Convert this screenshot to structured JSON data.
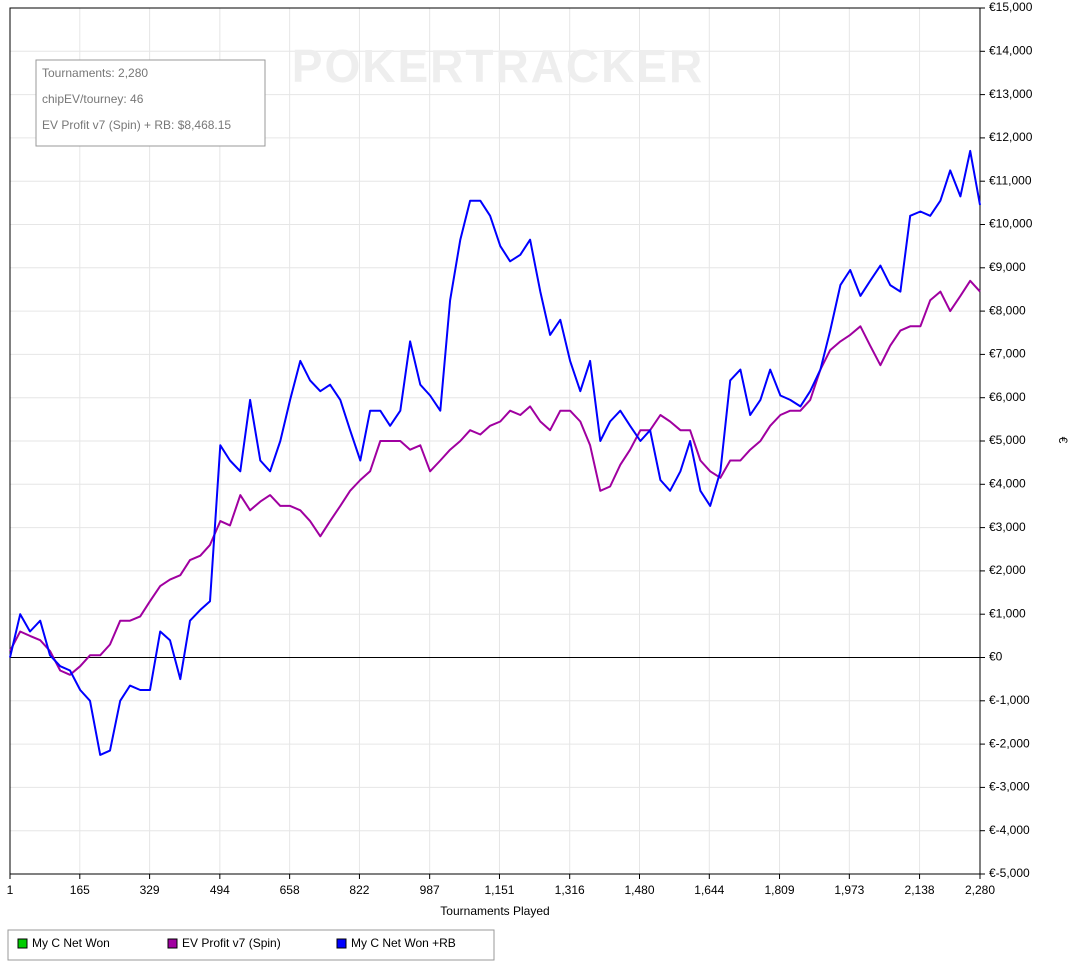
{
  "chart_data": {
    "type": "line",
    "watermark": "POKERTRACKER",
    "xlabel": "Tournaments Played",
    "ylabel": "€",
    "annotations": [
      "Tournaments: 2,280",
      "chipEV/tourney: 46",
      "EV Profit v7 (Spin) + RB: $8,468.15"
    ],
    "grid": true,
    "legend": "bottom-left",
    "xlim": [
      1,
      2280
    ],
    "ylim": [
      -5000,
      15000
    ],
    "xticks": [
      1,
      165,
      329,
      494,
      658,
      822,
      987,
      {
        "value": 1151,
        "label": "1,151"
      },
      {
        "value": 1316,
        "label": "1,316"
      },
      {
        "value": 1480,
        "label": "1,480"
      },
      {
        "value": 1644,
        "label": "1,644"
      },
      {
        "value": 1809,
        "label": "1,809"
      },
      {
        "value": 1973,
        "label": "1,973"
      },
      {
        "value": 2138,
        "label": "2,138"
      },
      {
        "value": 2280,
        "label": "2,280"
      }
    ],
    "yticks": [
      {
        "value": -5000,
        "label": "€-5,000"
      },
      {
        "value": -4000,
        "label": "€-4,000"
      },
      {
        "value": -3000,
        "label": "€-3,000"
      },
      {
        "value": -2000,
        "label": "€-2,000"
      },
      {
        "value": -1000,
        "label": "€-1,000"
      },
      {
        "value": 0,
        "label": "€0"
      },
      {
        "value": 1000,
        "label": "€1,000"
      },
      {
        "value": 2000,
        "label": "€2,000"
      },
      {
        "value": 3000,
        "label": "€3,000"
      },
      {
        "value": 4000,
        "label": "€4,000"
      },
      {
        "value": 5000,
        "label": "€5,000"
      },
      {
        "value": 6000,
        "label": "€6,000"
      },
      {
        "value": 7000,
        "label": "€7,000"
      },
      {
        "value": 8000,
        "label": "€8,000"
      },
      {
        "value": 9000,
        "label": "€9,000"
      },
      {
        "value": 10000,
        "label": "€10,000"
      },
      {
        "value": 11000,
        "label": "€11,000"
      },
      {
        "value": 12000,
        "label": "€12,000"
      },
      {
        "value": 13000,
        "label": "€13,000"
      },
      {
        "value": 14000,
        "label": "€14,000"
      },
      {
        "value": 15000,
        "label": "€15,000"
      }
    ],
    "x": [
      1,
      25,
      48,
      72,
      95,
      119,
      142,
      166,
      189,
      213,
      236,
      260,
      283,
      307,
      330,
      354,
      377,
      401,
      424,
      448,
      471,
      495,
      518,
      542,
      565,
      589,
      612,
      636,
      659,
      683,
      706,
      730,
      753,
      777,
      800,
      824,
      847,
      871,
      894,
      918,
      941,
      965,
      988,
      1012,
      1035,
      1059,
      1082,
      1106,
      1129,
      1153,
      1176,
      1200,
      1223,
      1247,
      1270,
      1294,
      1317,
      1341,
      1364,
      1388,
      1411,
      1435,
      1458,
      1482,
      1505,
      1529,
      1552,
      1576,
      1599,
      1623,
      1646,
      1670,
      1693,
      1717,
      1740,
      1764,
      1787,
      1811,
      1834,
      1858,
      1881,
      1905,
      1928,
      1952,
      1975,
      1999,
      2022,
      2046,
      2069,
      2093,
      2116,
      2140,
      2163,
      2187,
      2210,
      2234,
      2257,
      2280
    ],
    "series": [
      {
        "name": "My C Net Won",
        "color": "#00cc00",
        "values": [
          null,
          null,
          null,
          null,
          null,
          null,
          null,
          null,
          null,
          null,
          null,
          null,
          null,
          null,
          null,
          null,
          null,
          null,
          null,
          null,
          null,
          null,
          null,
          null,
          null,
          null,
          null,
          null,
          null,
          null,
          null,
          null,
          null,
          null,
          null,
          null,
          null,
          null,
          null,
          null,
          null,
          null,
          null,
          null,
          null,
          null,
          null,
          null,
          null,
          null,
          null,
          null,
          null,
          null,
          null,
          null,
          null,
          null,
          null,
          null,
          null,
          null,
          null,
          null,
          null,
          null,
          null,
          null,
          null,
          null,
          null,
          null,
          null,
          null,
          null,
          null,
          null,
          null,
          null,
          null,
          null,
          null,
          null,
          null,
          null,
          null,
          null,
          null,
          null,
          null,
          null,
          null,
          null,
          null,
          null,
          null,
          null,
          null
        ]
      },
      {
        "name": "EV Profit v7 (Spin)",
        "color": "#a000a0",
        "values": [
          150,
          600,
          500,
          400,
          150,
          -300,
          -400,
          -200,
          50,
          50,
          300,
          850,
          850,
          950,
          1300,
          1650,
          1800,
          1900,
          2250,
          2350,
          2600,
          3150,
          3050,
          3750,
          3400,
          3600,
          3750,
          3500,
          3500,
          3400,
          3150,
          2800,
          3150,
          3500,
          3850,
          4100,
          4300,
          5000,
          5000,
          5000,
          4800,
          4900,
          4300,
          4550,
          4800,
          5000,
          5250,
          5150,
          5350,
          5450,
          5700,
          5600,
          5800,
          5450,
          5250,
          5700,
          5700,
          5450,
          4900,
          3850,
          3950,
          4450,
          4800,
          5250,
          5250,
          5600,
          5450,
          5250,
          5250,
          4550,
          4300,
          4150,
          4550,
          4550,
          4800,
          5000,
          5350,
          5600,
          5700,
          5700,
          5950,
          6650,
          7100,
          7300,
          7450,
          7650,
          7200,
          6750,
          7200,
          7550,
          7650,
          7650,
          8250,
          8450,
          8000,
          8350,
          8700,
          8450
        ]
      },
      {
        "name": "My C Net Won +RB",
        "color": "#0000ff",
        "values": [
          0,
          1000,
          600,
          850,
          50,
          -200,
          -300,
          -750,
          -1000,
          -2250,
          -2150,
          -1000,
          -650,
          -750,
          -750,
          600,
          400,
          -500,
          850,
          1100,
          1300,
          4900,
          4550,
          4300,
          5950,
          4550,
          4300,
          5000,
          5950,
          6850,
          6400,
          6150,
          6300,
          5950,
          5250,
          4550,
          5700,
          5700,
          5350,
          5700,
          7300,
          6300,
          6050,
          5700,
          8250,
          9650,
          10550,
          10550,
          10200,
          9500,
          9150,
          9300,
          9650,
          8450,
          7450,
          7800,
          6850,
          6150,
          6850,
          5000,
          5450,
          5700,
          5350,
          5000,
          5250,
          4100,
          3850,
          4300,
          5000,
          3850,
          3500,
          4300,
          6400,
          6650,
          5600,
          5950,
          6650,
          6050,
          5950,
          5800,
          6150,
          6650,
          7550,
          8600,
          8950,
          8350,
          8700,
          9050,
          8600,
          8450,
          10200,
          10300,
          10200,
          10550,
          11250,
          10650,
          11700,
          10450
        ]
      }
    ]
  }
}
